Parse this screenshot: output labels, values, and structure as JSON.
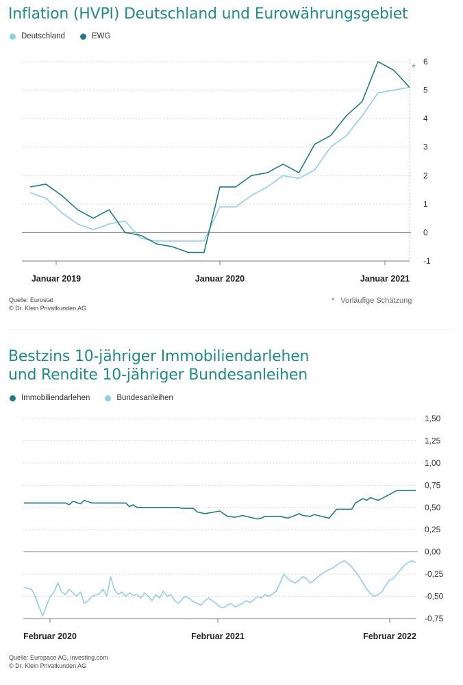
{
  "colors": {
    "dark": "#1a7d86",
    "light": "#8fcfe6",
    "title": "#1e8a8a"
  },
  "chart1": {
    "title": "Inflation (HVPI) Deutschland und Eurowährungsgebiet",
    "legend": [
      {
        "name": "Deutschland",
        "color": "#8fcfe6"
      },
      {
        "name": "EWG",
        "color": "#1a7d86"
      }
    ],
    "source_line1": "Quelle: Eurostat",
    "source_line2": "© Dr. Klein Privatkunden AG",
    "footnote_star": "*",
    "footnote_text": "Vorläufige Schätzung",
    "star_marker": "*"
  },
  "chart2": {
    "title_line1": "Bestzins 10-jähriger Immobiliendarlehen",
    "title_line2": "und Rendite 10-jähriger Bundesanleihen",
    "legend": [
      {
        "name": "Immobiliendarlehen",
        "color": "#1a7d86"
      },
      {
        "name": "Bundesanleihen",
        "color": "#8fcfe6"
      }
    ],
    "source_line1": "Quelle: Europace AG, investing.com",
    "source_line2": "© Dr. Klein Privatkunden AG"
  },
  "chart_data": [
    {
      "type": "line",
      "title": "Inflation (HVPI) Deutschland und Eurowährungsgebiet",
      "x_ticks": [
        "Januar 2019",
        "Januar 2020",
        "Januar 2021"
      ],
      "y_ticks": [
        "6",
        "5",
        "4",
        "3",
        "2",
        "1",
        "0",
        "-1"
      ],
      "ylim": [
        -1,
        6
      ],
      "x_unit": "month index from Januar 2019",
      "xlim": [
        0,
        24
      ],
      "grid": "dotted horizontal",
      "legend_position": "top-left",
      "series": [
        {
          "name": "Deutschland",
          "color": "#8fcfe6",
          "x": [
            0,
            1,
            2,
            3,
            4,
            5,
            6,
            7,
            8,
            9,
            10,
            11,
            12,
            13,
            14,
            15,
            16,
            17,
            18,
            19,
            20,
            21,
            22,
            23,
            24
          ],
          "values": [
            1.4,
            1.2,
            0.7,
            0.3,
            0.1,
            0.3,
            0.4,
            -0.2,
            -0.3,
            -0.3,
            -0.3,
            -0.3,
            0.9,
            0.9,
            1.3,
            1.6,
            2.0,
            1.9,
            2.2,
            3.0,
            3.4,
            4.1,
            4.9,
            5.0,
            5.1
          ]
        },
        {
          "name": "EWG",
          "color": "#1a7d86",
          "x": [
            0,
            1,
            2,
            3,
            4,
            5,
            6,
            7,
            8,
            9,
            10,
            11,
            12,
            13,
            14,
            15,
            16,
            17,
            18,
            19,
            20,
            21,
            22,
            23,
            24
          ],
          "values": [
            1.6,
            1.7,
            1.3,
            0.8,
            0.5,
            0.8,
            0.0,
            -0.1,
            -0.4,
            -0.5,
            -0.7,
            -0.7,
            1.6,
            1.6,
            2.0,
            2.1,
            2.4,
            2.1,
            3.1,
            3.4,
            4.1,
            4.6,
            6.0,
            5.7,
            5.1
          ]
        }
      ]
    },
    {
      "type": "line",
      "title": "Bestzins 10-jähriger Immobiliendarlehen und Rendite 10-jähriger Bundesanleihen",
      "x_ticks": [
        "Februar 2020",
        "Februar 2021",
        "Februar 2022"
      ],
      "y_ticks": [
        "1,50",
        "1,25",
        "1,00",
        "0,75",
        "0,50",
        "0,25",
        "0,00",
        "-0,25",
        "-0,50",
        "-0,75"
      ],
      "ylim": [
        -0.75,
        1.5
      ],
      "x_unit": "weeks from Februar 2020",
      "xlim": [
        0,
        104
      ],
      "grid": "dotted horizontal",
      "legend_position": "top-left",
      "series": [
        {
          "name": "Immobiliendarlehen",
          "color": "#1a7d86",
          "x": [
            0,
            3,
            6,
            9,
            11,
            12,
            13,
            15,
            16,
            18,
            19,
            20,
            24,
            27,
            28,
            29,
            30,
            34,
            37,
            38,
            39,
            41,
            42,
            45,
            46,
            48,
            52,
            53,
            54,
            56,
            58,
            59,
            60,
            62,
            63,
            64,
            65,
            68,
            70,
            72,
            73,
            74,
            76,
            77,
            78,
            79,
            81,
            83,
            84,
            87,
            88,
            90,
            91,
            92,
            94,
            95,
            99,
            100,
            102,
            103,
            104
          ],
          "values": [
            0.55,
            0.55,
            0.55,
            0.55,
            0.55,
            0.53,
            0.57,
            0.54,
            0.58,
            0.55,
            0.55,
            0.55,
            0.55,
            0.55,
            0.51,
            0.53,
            0.5,
            0.5,
            0.5,
            0.5,
            0.5,
            0.5,
            0.49,
            0.49,
            0.45,
            0.43,
            0.46,
            0.43,
            0.4,
            0.39,
            0.41,
            0.4,
            0.39,
            0.37,
            0.38,
            0.4,
            0.4,
            0.4,
            0.38,
            0.41,
            0.43,
            0.41,
            0.4,
            0.42,
            0.41,
            0.4,
            0.38,
            0.48,
            0.48,
            0.48,
            0.55,
            0.6,
            0.58,
            0.61,
            0.58,
            0.6,
            0.69,
            0.69,
            0.69,
            0.69,
            0.69
          ]
        },
        {
          "name": "Bundesanleihen",
          "color": "#8fcfe6",
          "x": [
            0,
            2,
            3,
            4,
            5,
            6,
            7,
            8,
            9,
            10,
            11,
            12,
            14,
            15,
            16,
            17,
            18,
            20,
            21,
            22,
            23,
            24,
            25,
            26,
            27,
            28,
            29,
            30,
            31,
            32,
            33,
            34,
            35,
            36,
            37,
            38,
            39,
            40,
            41,
            42,
            43,
            44,
            45,
            46,
            47,
            48,
            49,
            50,
            51,
            52,
            53,
            54,
            55,
            56,
            57,
            58,
            59,
            60,
            61,
            62,
            63,
            64,
            65,
            66,
            67,
            68,
            69,
            70,
            71,
            72,
            73,
            74,
            75,
            76,
            77,
            78,
            79,
            80,
            81,
            82,
            83,
            84,
            85,
            86,
            87,
            88,
            89,
            90,
            91,
            92,
            93,
            94,
            95,
            96,
            97,
            98,
            99,
            100,
            101,
            102,
            103,
            104
          ],
          "values": [
            -0.4,
            -0.42,
            -0.5,
            -0.62,
            -0.72,
            -0.6,
            -0.5,
            -0.45,
            -0.35,
            -0.45,
            -0.48,
            -0.42,
            -0.5,
            -0.45,
            -0.58,
            -0.55,
            -0.5,
            -0.47,
            -0.42,
            -0.5,
            -0.28,
            -0.42,
            -0.48,
            -0.45,
            -0.5,
            -0.46,
            -0.49,
            -0.48,
            -0.52,
            -0.46,
            -0.5,
            -0.55,
            -0.48,
            -0.52,
            -0.44,
            -0.5,
            -0.48,
            -0.55,
            -0.58,
            -0.53,
            -0.5,
            -0.53,
            -0.56,
            -0.58,
            -0.6,
            -0.55,
            -0.52,
            -0.55,
            -0.58,
            -0.62,
            -0.63,
            -0.6,
            -0.58,
            -0.62,
            -0.6,
            -0.58,
            -0.55,
            -0.57,
            -0.54,
            -0.5,
            -0.52,
            -0.48,
            -0.5,
            -0.47,
            -0.44,
            -0.35,
            -0.25,
            -0.3,
            -0.33,
            -0.35,
            -0.32,
            -0.28,
            -0.3,
            -0.35,
            -0.32,
            -0.28,
            -0.25,
            -0.22,
            -0.2,
            -0.18,
            -0.15,
            -0.12,
            -0.1,
            -0.13,
            -0.17,
            -0.22,
            -0.28,
            -0.35,
            -0.42,
            -0.47,
            -0.5,
            -0.48,
            -0.45,
            -0.38,
            -0.32,
            -0.3,
            -0.25,
            -0.2,
            -0.15,
            -0.12,
            -0.1,
            -0.12
          ]
        }
      ]
    }
  ]
}
